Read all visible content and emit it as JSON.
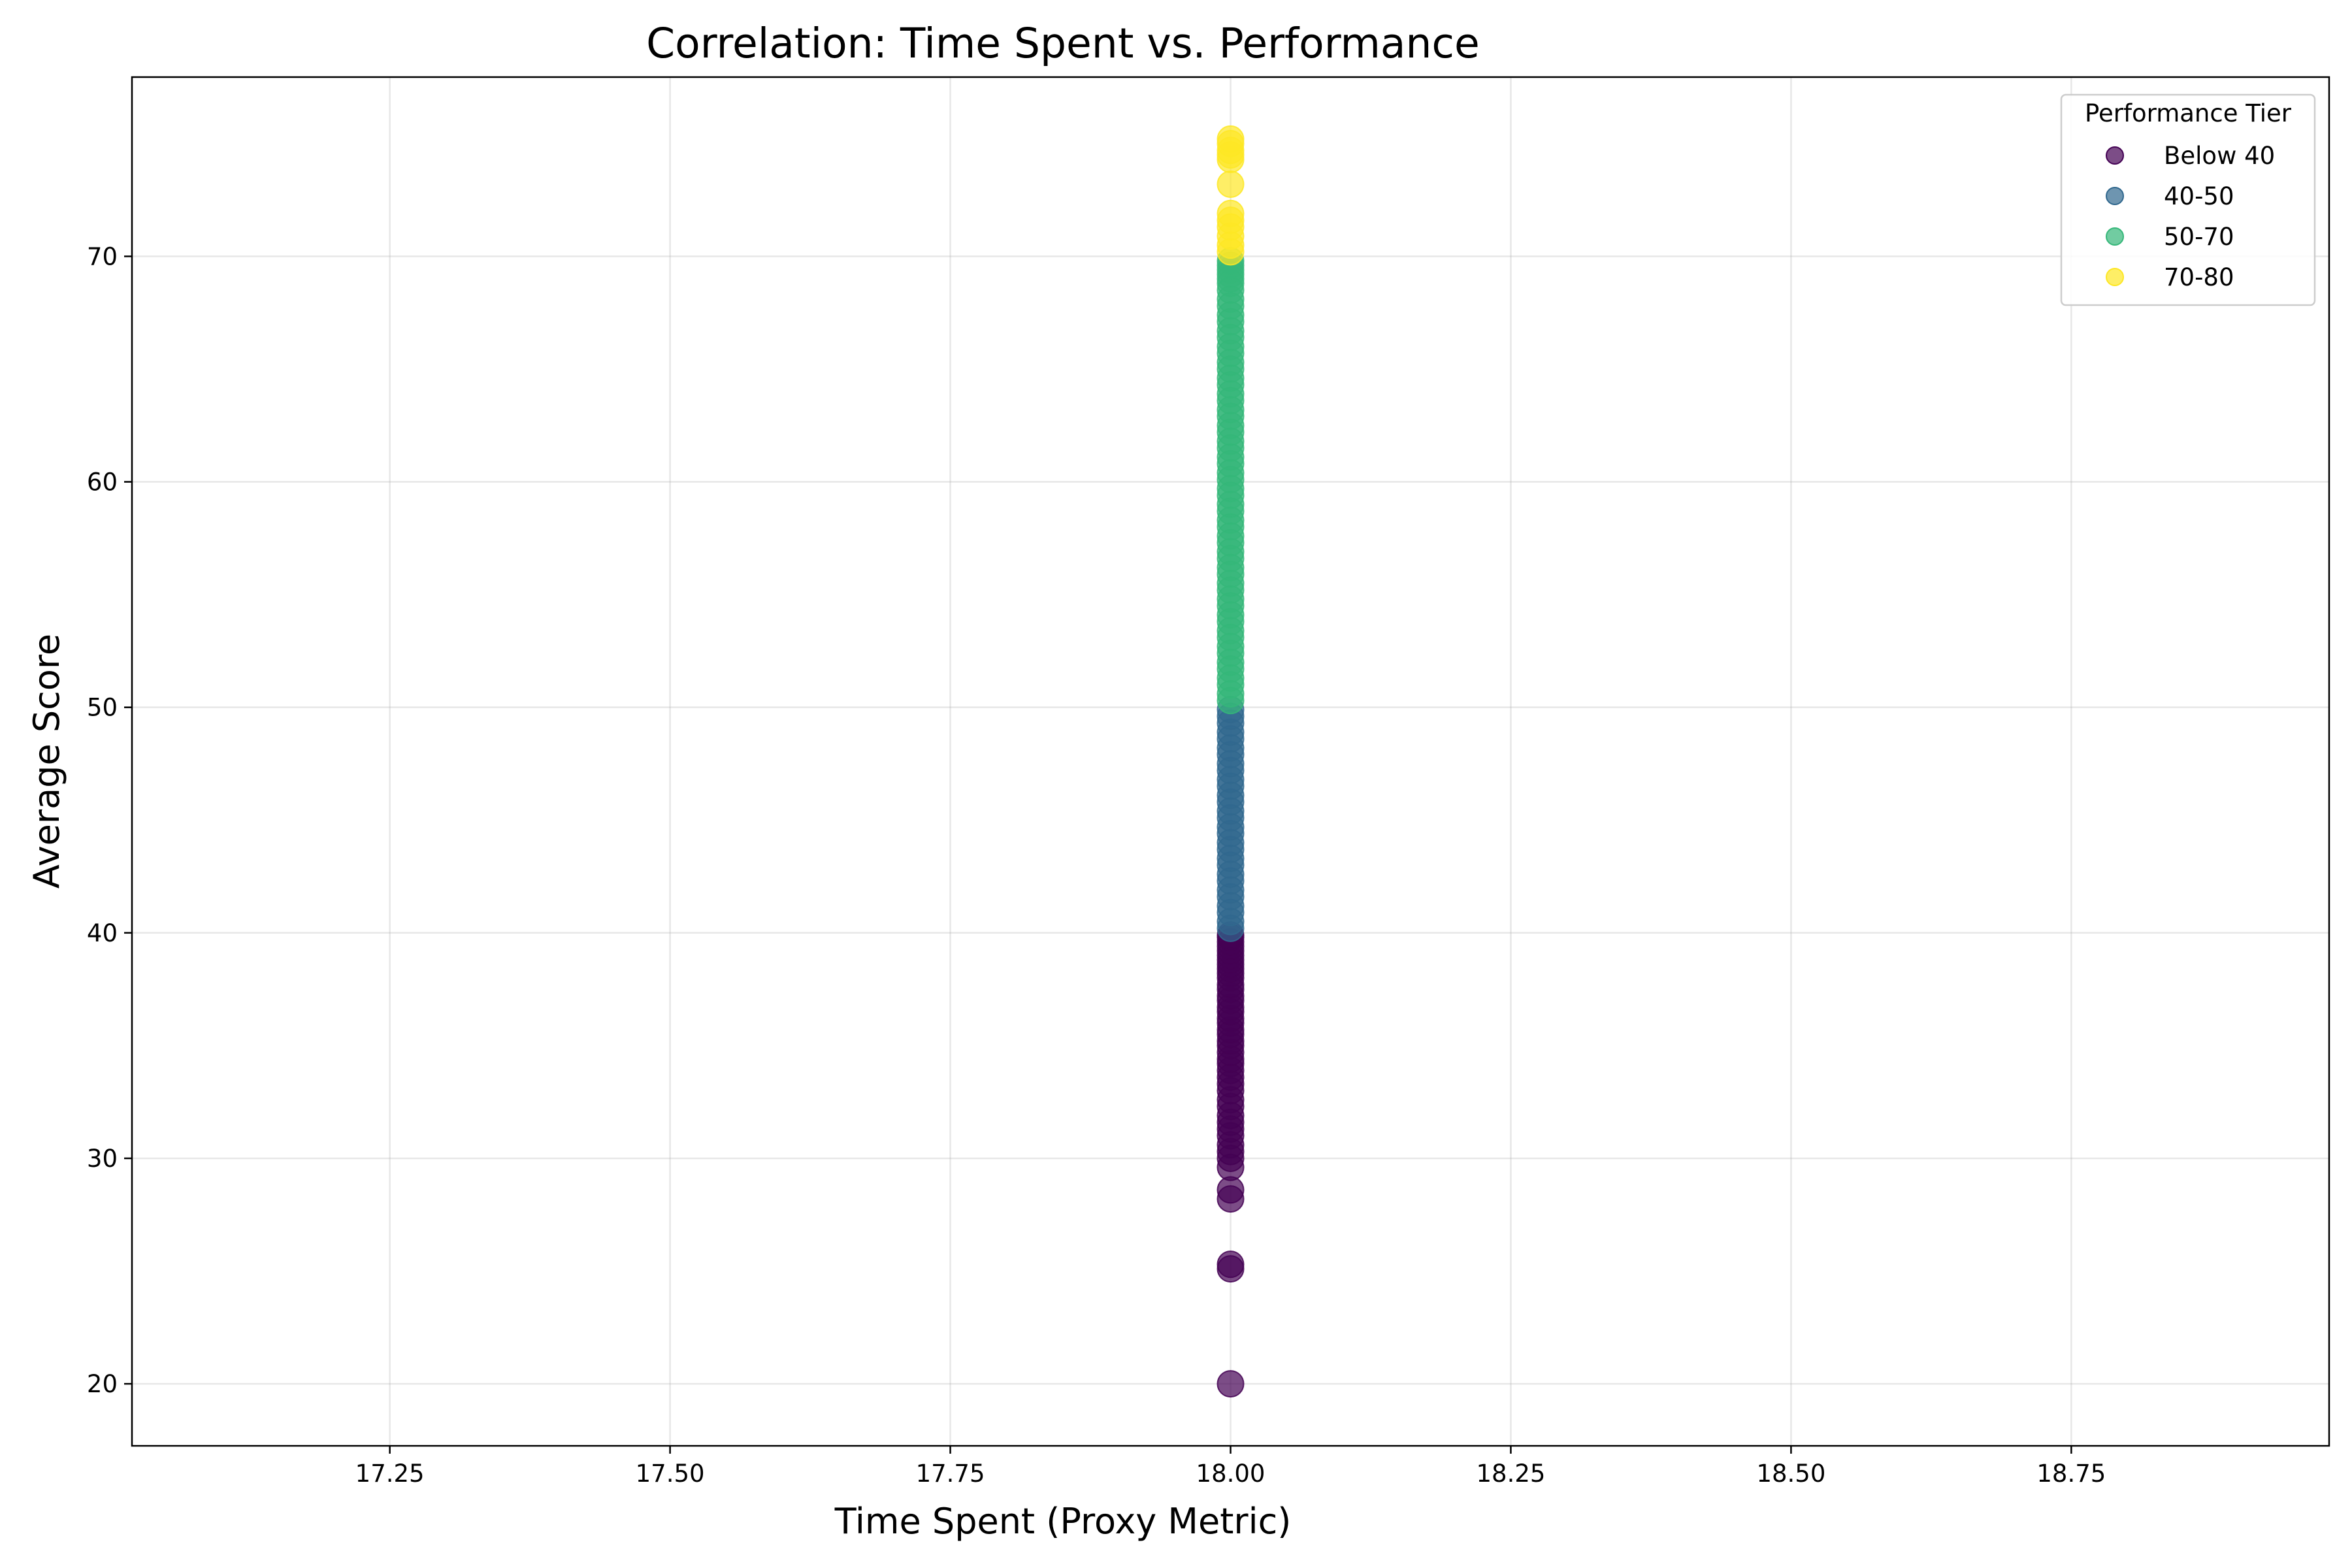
{
  "chart_data": {
    "type": "scatter",
    "title": "Correlation: Time Spent vs. Performance",
    "xlabel": "Time Spent (Proxy Metric)",
    "ylabel": "Average Score",
    "xlim": [
      17.02,
      18.98
    ],
    "ylim": [
      17.25,
      77.95
    ],
    "xticks": [
      "17.25",
      "17.50",
      "17.75",
      "18.00",
      "18.25",
      "18.50",
      "18.75"
    ],
    "xtick_values": [
      17.25,
      17.5,
      17.75,
      18.0,
      18.25,
      18.5,
      18.75
    ],
    "yticks": [
      "20",
      "30",
      "40",
      "50",
      "60",
      "70"
    ],
    "ytick_values": [
      20,
      30,
      40,
      50,
      60,
      70
    ],
    "grid": true,
    "legend": {
      "title": "Performance Tier",
      "placement": "top-right",
      "entries": [
        "Below 40",
        "40-50",
        "50-70",
        "70-80"
      ]
    },
    "series": [
      {
        "name": "Below 40",
        "color": "#440154",
        "x": [
          18,
          18,
          18,
          18,
          18,
          18,
          18,
          18,
          18,
          18,
          18,
          18,
          18,
          18,
          18,
          18,
          18,
          18,
          18,
          18,
          18,
          18,
          18,
          18,
          18,
          18,
          18,
          18,
          18,
          18,
          18,
          18,
          18,
          18,
          18,
          18,
          18,
          18,
          18,
          18,
          18,
          18,
          18,
          18,
          18
        ],
        "y": [
          20.0,
          25.1,
          25.3,
          28.2,
          28.6,
          29.6,
          30.0,
          30.3,
          30.6,
          31.0,
          31.3,
          31.6,
          31.9,
          32.3,
          32.6,
          33.0,
          33.3,
          33.6,
          33.9,
          34.2,
          34.4,
          34.7,
          35.0,
          35.2,
          35.5,
          35.7,
          36.0,
          36.2,
          36.5,
          36.7,
          37.0,
          37.2,
          37.5,
          37.7,
          38.0,
          38.2,
          38.4,
          38.6,
          38.8,
          39.0,
          39.2,
          39.4,
          39.6,
          39.8,
          39.9
        ]
      },
      {
        "name": "40-50",
        "color": "#31688e",
        "x": [
          18,
          18,
          18,
          18,
          18,
          18,
          18,
          18,
          18,
          18,
          18,
          18,
          18,
          18,
          18,
          18,
          18,
          18,
          18,
          18,
          18,
          18,
          18,
          18,
          18,
          18,
          18,
          18,
          18
        ],
        "y": [
          40.2,
          40.5,
          40.9,
          41.2,
          41.6,
          41.9,
          42.3,
          42.6,
          43.0,
          43.3,
          43.7,
          44.0,
          44.4,
          44.7,
          45.1,
          45.4,
          45.8,
          46.1,
          46.5,
          46.8,
          47.2,
          47.5,
          47.9,
          48.2,
          48.6,
          48.9,
          49.3,
          49.6,
          49.9
        ]
      },
      {
        "name": "50-70",
        "color": "#35b779",
        "x": [
          18,
          18,
          18,
          18,
          18,
          18,
          18,
          18,
          18,
          18,
          18,
          18,
          18,
          18,
          18,
          18,
          18,
          18,
          18,
          18,
          18,
          18,
          18,
          18,
          18,
          18,
          18,
          18,
          18,
          18,
          18,
          18,
          18,
          18,
          18,
          18,
          18,
          18,
          18,
          18,
          18,
          18,
          18,
          18,
          18,
          18,
          18,
          18,
          18,
          18,
          18,
          18,
          18,
          18,
          18,
          18,
          18,
          18,
          18
        ],
        "y": [
          50.3,
          50.6,
          51.0,
          51.3,
          51.7,
          52.0,
          52.4,
          52.7,
          53.1,
          53.4,
          53.8,
          54.1,
          54.5,
          54.8,
          55.2,
          55.5,
          55.9,
          56.2,
          56.6,
          56.9,
          57.3,
          57.6,
          58.0,
          58.3,
          58.7,
          59.0,
          59.4,
          59.7,
          60.1,
          60.4,
          60.8,
          61.1,
          61.5,
          61.8,
          62.2,
          62.5,
          62.9,
          63.2,
          63.6,
          63.9,
          64.3,
          64.6,
          65.0,
          65.3,
          65.7,
          66.0,
          66.4,
          66.7,
          67.1,
          67.4,
          67.8,
          68.1,
          68.5,
          68.8,
          69.0,
          69.2,
          69.4,
          69.6,
          69.8
        ]
      },
      {
        "name": "70-80",
        "color": "#fde725",
        "x": [
          18,
          18,
          18,
          18,
          18,
          18,
          18,
          18,
          18,
          18,
          18,
          18
        ],
        "y": [
          70.2,
          70.5,
          70.9,
          71.3,
          71.6,
          71.9,
          73.2,
          74.3,
          74.5,
          74.7,
          75.0,
          75.2
        ]
      }
    ]
  }
}
